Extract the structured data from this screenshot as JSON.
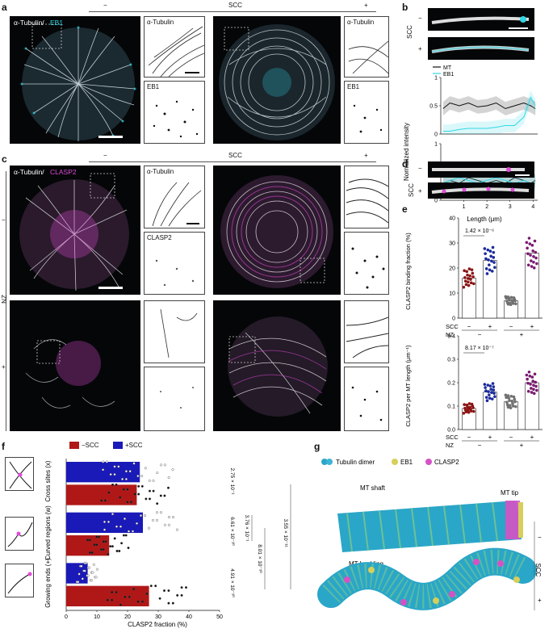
{
  "panels": {
    "a": {
      "letter": "a",
      "minus": "−",
      "scc": "SCC",
      "plus": "+",
      "main_label_1": "α-Tubulin/",
      "main_label_2": "EB1",
      "inset_top": "α-Tubulin",
      "inset_bottom": "EB1"
    },
    "b": {
      "letter": "b",
      "scc": "SCC",
      "minus": "−",
      "plus": "+",
      "legend_mt": "MT",
      "legend_eb1": "EB1",
      "ylabel": "Normalized intensity",
      "xlabel": "Length (μm)"
    },
    "c": {
      "letter": "c",
      "minus": "−",
      "scc": "SCC",
      "plus": "+",
      "nz": "NZ",
      "nz_minus": "−",
      "nz_plus": "+",
      "main_label_1": "α-Tubulin/",
      "main_label_2": "CLASP2",
      "inset_top": "α-Tubulin",
      "inset_bottom": "CLASP2"
    },
    "d": {
      "letter": "d",
      "scc": "SCC",
      "minus": "−",
      "plus": "+"
    },
    "e": {
      "letter": "e",
      "top_ylabel": "CLASP2 binding fraction (%)",
      "top_pvalue": "1.42 × 10⁻⁶",
      "bottom_ylabel": "CLASP2 per MT length (μm⁻¹)",
      "bottom_pvalue": "8.17 × 10⁻⁷",
      "scc": "SCC",
      "nz": "NZ",
      "minus": "−",
      "plus": "+"
    },
    "f": {
      "letter": "f",
      "legend_minus": "−SCC",
      "legend_plus": "+SCC",
      "xlabel": "CLASP2 fraction (%)",
      "categories": [
        "Cross sites (x)",
        "Curved regions (w)",
        "Growing ends (+)"
      ],
      "pvalues": [
        "2.75 × 10⁻¹",
        "6.61 × 10⁻¹⁰",
        "4.91 × 10⁻¹⁰",
        "3.76 × 10⁻¹",
        "8.01 × 10⁻¹⁰",
        "3.55 × 10⁻¹¹"
      ]
    },
    "g": {
      "letter": "g",
      "legend_tubulin": "Tubulin dimer",
      "legend_eb1": "EB1",
      "legend_clasp2": "CLASP2",
      "mt_shaft": "MT shaft",
      "mt_tip": "MT tip",
      "mt_buckling": "MT buckling",
      "scc": "SCC",
      "minus": "−",
      "plus": "+"
    }
  },
  "colors": {
    "cyan": "#32d7e6",
    "magenta": "#e04bd8",
    "bar_minus": "#b01818",
    "bar_plus": "#1a1ab8",
    "dot_red": "#8b1414",
    "dot_blue": "#1a2a9a",
    "dot_gray": "#707070",
    "dot_purple": "#7a1a70"
  },
  "chart_data": [
    {
      "panel": "b-top",
      "type": "line",
      "xlabel": "Length (μm)",
      "ylabel": "Normalized intensity",
      "xlim": [
        0,
        4.2
      ],
      "ylim": [
        0,
        1.0
      ],
      "yticks": [
        0,
        0.5,
        1.0
      ],
      "series": [
        {
          "name": "MT",
          "x": [
            0.1,
            0.4,
            0.8,
            1.2,
            1.6,
            2.0,
            2.4,
            2.8,
            3.2,
            3.6,
            3.9,
            4.1
          ],
          "values": [
            0.45,
            0.55,
            0.5,
            0.55,
            0.48,
            0.5,
            0.55,
            0.45,
            0.5,
            0.55,
            0.5,
            0.45
          ]
        },
        {
          "name": "EB1",
          "x": [
            0.1,
            0.4,
            0.8,
            1.2,
            1.6,
            2.0,
            2.4,
            2.8,
            3.2,
            3.6,
            3.9,
            4.1
          ],
          "values": [
            0.05,
            0.05,
            0.08,
            0.1,
            0.1,
            0.1,
            0.12,
            0.15,
            0.15,
            0.3,
            0.65,
            0.5
          ]
        }
      ]
    },
    {
      "panel": "b-bottom",
      "type": "line",
      "xlim": [
        0,
        4.2
      ],
      "ylim": [
        0,
        1.0
      ],
      "yticks": [
        0,
        0.5,
        1.0
      ],
      "xticks": [
        1,
        2,
        3,
        4
      ],
      "series": [
        {
          "name": "MT",
          "x": [
            0.1,
            0.4,
            0.8,
            1.2,
            1.6,
            2.0,
            2.4,
            2.8,
            3.2,
            3.6,
            3.9,
            4.1
          ],
          "values": [
            0.3,
            0.35,
            0.3,
            0.4,
            0.35,
            0.3,
            0.35,
            0.3,
            0.4,
            0.35,
            0.3,
            0.35
          ]
        },
        {
          "name": "EB1",
          "x": [
            0.1,
            0.4,
            0.8,
            1.2,
            1.6,
            2.0,
            2.4,
            2.8,
            3.2,
            3.6,
            3.9,
            4.1
          ],
          "values": [
            0.3,
            0.35,
            0.4,
            0.35,
            0.3,
            0.35,
            0.4,
            0.35,
            0.3,
            0.35,
            0.3,
            0.3
          ]
        }
      ]
    },
    {
      "panel": "e-top",
      "type": "bar",
      "categories": [
        "−SCC −NZ",
        "+SCC −NZ",
        "−SCC +NZ",
        "+SCC +NZ"
      ],
      "values": [
        16,
        23,
        7,
        26
      ],
      "ylim": [
        0,
        40
      ],
      "yticks": [
        0,
        10,
        20,
        30,
        40
      ]
    },
    {
      "panel": "e-bottom",
      "type": "bar",
      "categories": [
        "−SCC −NZ",
        "+SCC −NZ",
        "−SCC +NZ",
        "+SCC +NZ"
      ],
      "values": [
        0.09,
        0.16,
        0.12,
        0.2
      ],
      "ylim": [
        0,
        0.4
      ],
      "yticks": [
        0,
        0.1,
        0.2,
        0.3,
        0.4
      ]
    },
    {
      "panel": "f",
      "type": "bar",
      "orientation": "horizontal",
      "categories": [
        "Cross sites (x)",
        "Curved regions (w)",
        "Growing ends (+)"
      ],
      "series": [
        {
          "name": "+SCC",
          "values": [
            24,
            25,
            7
          ]
        },
        {
          "name": "−SCC",
          "values": [
            23,
            14,
            27
          ]
        }
      ],
      "xlabel": "CLASP2 fraction (%)",
      "xlim": [
        0,
        50
      ],
      "xticks": [
        0,
        10,
        20,
        30,
        40,
        50
      ]
    }
  ]
}
